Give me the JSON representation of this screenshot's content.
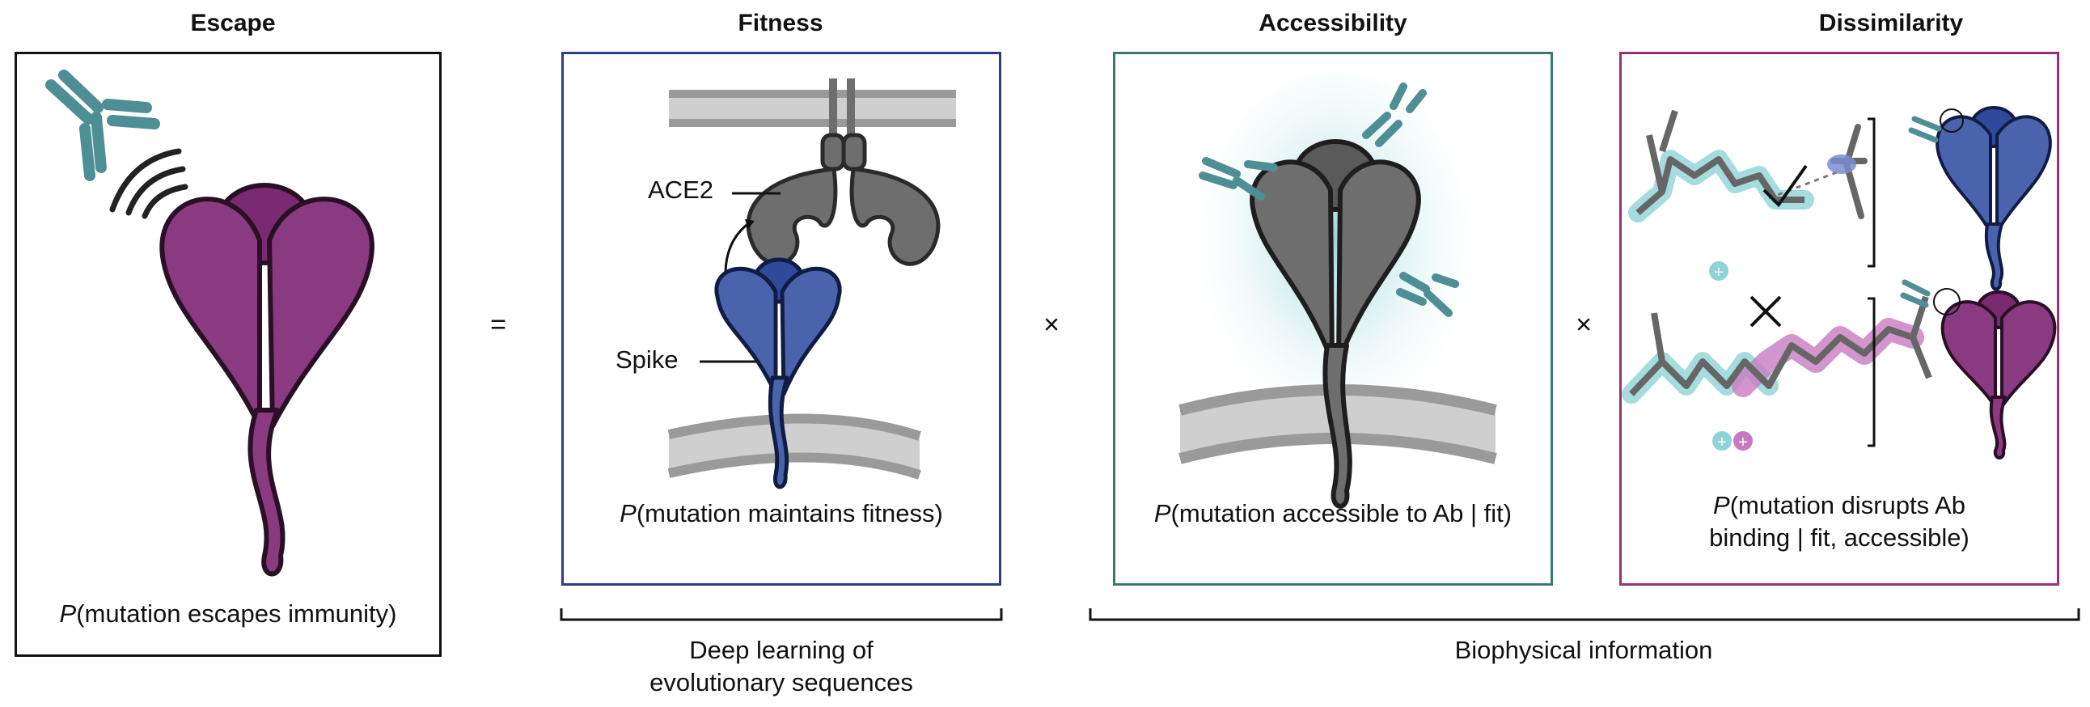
{
  "columns": [
    {
      "title": "Escape",
      "caption_var": "P",
      "caption_text": "(mutation escapes immunity)"
    },
    {
      "title": "Fitness",
      "caption_var": "P",
      "caption_text": "(mutation maintains fitness)"
    },
    {
      "title": "Accessibility",
      "caption_var": "P",
      "caption_text": "(mutation accessible to Ab | fit)"
    },
    {
      "title": "Dissimilarity",
      "caption_var": "P",
      "caption_line1": "(mutation disrupts Ab",
      "caption_line2": "binding | fit, accessible)"
    }
  ],
  "operators": {
    "equals": "=",
    "times1": "×",
    "times2": "×"
  },
  "fitness_labels": {
    "ace2": "ACE2",
    "spike": "Spike"
  },
  "bottom_labels": {
    "deep_learning_line1": "Deep learning of",
    "deep_learning_line2": "evolutionary sequences",
    "biophysical": "Biophysical information"
  },
  "colors": {
    "escape_border": "#111111",
    "fitness_border": "#2e3a8c",
    "accessibility_border": "#3a7a6e",
    "dissimilarity_border": "#9c2f6e",
    "purple_protein": "#8a3a80",
    "blue_protein": "#4a63ad",
    "gray_protein": "#6e6e6e",
    "antibody": "#4e8e95"
  }
}
